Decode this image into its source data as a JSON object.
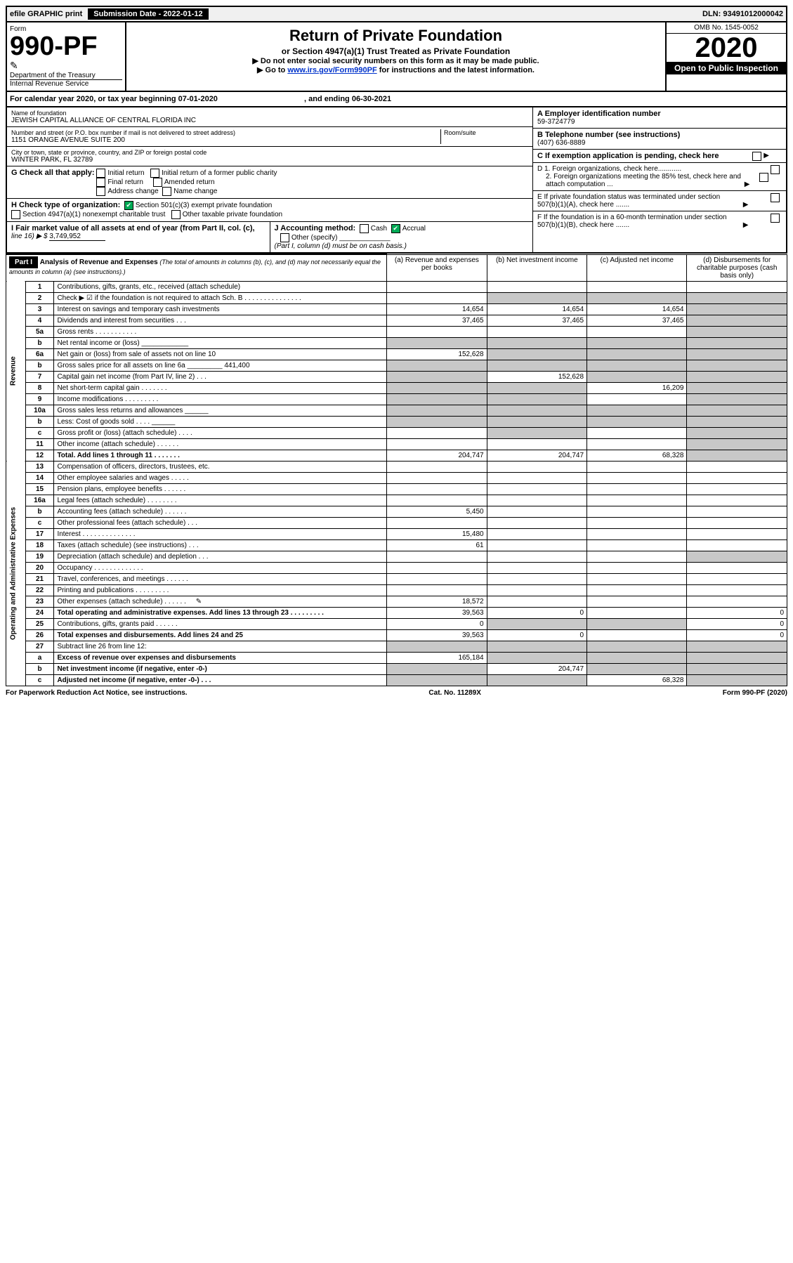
{
  "topbar": {
    "efile": "efile GRAPHIC print",
    "sub_label": "Submission Date - 2022-01-12",
    "dln": "DLN: 93491012000042"
  },
  "header": {
    "form_word": "Form",
    "form_no": "990-PF",
    "dept": "Department of the Treasury",
    "irs": "Internal Revenue Service",
    "title": "Return of Private Foundation",
    "subtitle": "or Section 4947(a)(1) Trust Treated as Private Foundation",
    "instr1": "▶ Do not enter social security numbers on this form as it may be made public.",
    "instr2_pre": "▶ Go to ",
    "instr2_link": "www.irs.gov/Form990PF",
    "instr2_post": " for instructions and the latest information.",
    "omb": "OMB No. 1545-0052",
    "year": "2020",
    "open": "Open to Public Inspection"
  },
  "calyear": {
    "text_pre": "For calendar year 2020, or tax year beginning ",
    "begin": "07-01-2020",
    "mid": " , and ending ",
    "end": "06-30-2021"
  },
  "org": {
    "name_lbl": "Name of foundation",
    "name": "JEWISH CAPITAL ALLIANCE OF CENTRAL FLORIDA INC",
    "addr_lbl": "Number and street (or P.O. box number if mail is not delivered to street address)",
    "addr": "1151 ORANGE AVENUE SUITE 200",
    "room_lbl": "Room/suite",
    "city_lbl": "City or town, state or province, country, and ZIP or foreign postal code",
    "city": "WINTER PARK, FL  32789"
  },
  "right": {
    "A_lbl": "A Employer identification number",
    "A_val": "59-3724779",
    "B_lbl": "B Telephone number (see instructions)",
    "B_val": "(407) 636-8889",
    "C_lbl": "C If exemption application is pending, check here",
    "D1": "D 1. Foreign organizations, check here............",
    "D2": "2. Foreign organizations meeting the 85% test, check here and attach computation ...",
    "E": "E  If private foundation status was terminated under section 507(b)(1)(A), check here .......",
    "F": "F  If the foundation is in a 60-month termination under section 507(b)(1)(B), check here .......",
    "arrow": "▶"
  },
  "G": {
    "lbl": "G Check all that apply:",
    "opts": [
      "Initial return",
      "Final return",
      "Address change",
      "Initial return of a former public charity",
      "Amended return",
      "Name change"
    ]
  },
  "H": {
    "lbl": "H Check type of organization:",
    "o1": "Section 501(c)(3) exempt private foundation",
    "o2": "Section 4947(a)(1) nonexempt charitable trust",
    "o3": "Other taxable private foundation"
  },
  "I": {
    "lbl": "I Fair market value of all assets at end of year (from Part II, col. (c),",
    "line": "line 16) ▶ $",
    "val": "3,749,952"
  },
  "J": {
    "lbl": "J Accounting method:",
    "cash": "Cash",
    "accrual": "Accrual",
    "other": "Other (specify)",
    "note": "(Part I, column (d) must be on cash basis.)"
  },
  "part1": {
    "label": "Part I",
    "title": "Analysis of Revenue and Expenses",
    "note": "(The total of amounts in columns (b), (c), and (d) may not necessarily equal the amounts in column (a) (see instructions).)",
    "col_a": "(a) Revenue and expenses per books",
    "col_b": "(b) Net investment income",
    "col_c": "(c) Adjusted net income",
    "col_d": "(d) Disbursements for charitable purposes (cash basis only)"
  },
  "vert": {
    "revenue": "Revenue",
    "expenses": "Operating and Administrative Expenses"
  },
  "rows": [
    {
      "ln": "1",
      "desc": "Contributions, gifts, grants, etc., received (attach schedule)",
      "a": "",
      "b": "",
      "c": "",
      "d": "",
      "grey_d": false
    },
    {
      "ln": "2",
      "desc": "Check ▶ ☑ if the foundation is not required to attach Sch. B      .   .   .   .   .   .   .   .   .   .   .   .   .   .   .",
      "a": "",
      "b": "",
      "c": "",
      "d": "",
      "grey_b": true,
      "grey_c": true,
      "grey_d": true
    },
    {
      "ln": "3",
      "desc": "Interest on savings and temporary cash investments",
      "a": "14,654",
      "b": "14,654",
      "c": "14,654",
      "d": "",
      "grey_d": true
    },
    {
      "ln": "4",
      "desc": "Dividends and interest from securities     .   .   .",
      "a": "37,465",
      "b": "37,465",
      "c": "37,465",
      "d": "",
      "grey_d": true
    },
    {
      "ln": "5a",
      "desc": "Gross rents        .   .   .   .   .   .   .   .   .   .   .",
      "a": "",
      "b": "",
      "c": "",
      "d": "",
      "grey_d": true
    },
    {
      "ln": "b",
      "desc": "Net rental income or (loss) ____________",
      "a": "",
      "b": "",
      "c": "",
      "d": "",
      "grey_a": true,
      "grey_b": true,
      "grey_c": true,
      "grey_d": true
    },
    {
      "ln": "6a",
      "desc": "Net gain or (loss) from sale of assets not on line 10",
      "a": "152,628",
      "b": "",
      "c": "",
      "d": "",
      "grey_b": true,
      "grey_c": true,
      "grey_d": true
    },
    {
      "ln": "b",
      "desc": "Gross sales price for all assets on line 6a _________ 441,400",
      "a": "",
      "b": "",
      "c": "",
      "d": "",
      "grey_a": true,
      "grey_b": true,
      "grey_c": true,
      "grey_d": true
    },
    {
      "ln": "7",
      "desc": "Capital gain net income (from Part IV, line 2)    .   .   .",
      "a": "",
      "b": "152,628",
      "c": "",
      "d": "",
      "grey_a": true,
      "grey_c": true,
      "grey_d": true
    },
    {
      "ln": "8",
      "desc": "Net short-term capital gain    .   .   .   .   .   .   .",
      "a": "",
      "b": "",
      "c": "16,209",
      "d": "",
      "grey_a": true,
      "grey_b": true,
      "grey_d": true
    },
    {
      "ln": "9",
      "desc": "Income modifications  .   .   .   .   .   .   .   .   .",
      "a": "",
      "b": "",
      "c": "",
      "d": "",
      "grey_a": true,
      "grey_b": true,
      "grey_d": true
    },
    {
      "ln": "10a",
      "desc": "Gross sales less returns and allowances  ______",
      "a": "",
      "b": "",
      "c": "",
      "d": "",
      "grey_a": true,
      "grey_b": true,
      "grey_c": true,
      "grey_d": true
    },
    {
      "ln": "b",
      "desc": "Less: Cost of goods sold     .   .   .   .   ______",
      "a": "",
      "b": "",
      "c": "",
      "d": "",
      "grey_a": true,
      "grey_b": true,
      "grey_c": true,
      "grey_d": true
    },
    {
      "ln": "c",
      "desc": "Gross profit or (loss) (attach schedule)     .   .   .   .",
      "a": "",
      "b": "",
      "c": "",
      "d": "",
      "grey_b": true,
      "grey_d": true
    },
    {
      "ln": "11",
      "desc": "Other income (attach schedule)    .   .   .   .   .   .",
      "a": "",
      "b": "",
      "c": "",
      "d": "",
      "grey_d": true
    },
    {
      "ln": "12",
      "desc": "Total. Add lines 1 through 11    .   .   .   .   .   .   .",
      "a": "204,747",
      "b": "204,747",
      "c": "68,328",
      "d": "",
      "bold": true,
      "grey_d": true
    }
  ],
  "exp_rows": [
    {
      "ln": "13",
      "desc": "Compensation of officers, directors, trustees, etc.",
      "a": "",
      "b": "",
      "c": "",
      "d": ""
    },
    {
      "ln": "14",
      "desc": "Other employee salaries and wages    .   .   .   .   .",
      "a": "",
      "b": "",
      "c": "",
      "d": ""
    },
    {
      "ln": "15",
      "desc": "Pension plans, employee benefits   .   .   .   .   .   .",
      "a": "",
      "b": "",
      "c": "",
      "d": ""
    },
    {
      "ln": "16a",
      "desc": "Legal fees (attach schedule)  .   .   .   .   .   .   .   .",
      "a": "",
      "b": "",
      "c": "",
      "d": ""
    },
    {
      "ln": "b",
      "desc": "Accounting fees (attach schedule)  .   .   .   .   .   .",
      "a": "5,450",
      "b": "",
      "c": "",
      "d": ""
    },
    {
      "ln": "c",
      "desc": "Other professional fees (attach schedule)     .   .   .",
      "a": "",
      "b": "",
      "c": "",
      "d": ""
    },
    {
      "ln": "17",
      "desc": "Interest  .   .   .   .   .   .   .   .   .   .   .   .   .   .",
      "a": "15,480",
      "b": "",
      "c": "",
      "d": ""
    },
    {
      "ln": "18",
      "desc": "Taxes (attach schedule) (see instructions)      .   .   .",
      "a": "61",
      "b": "",
      "c": "",
      "d": ""
    },
    {
      "ln": "19",
      "desc": "Depreciation (attach schedule) and depletion    .   .   .",
      "a": "",
      "b": "",
      "c": "",
      "d": "",
      "grey_d": true
    },
    {
      "ln": "20",
      "desc": "Occupancy  .   .   .   .   .   .   .   .   .   .   .   .   .",
      "a": "",
      "b": "",
      "c": "",
      "d": ""
    },
    {
      "ln": "21",
      "desc": "Travel, conferences, and meetings  .   .   .   .   .   .",
      "a": "",
      "b": "",
      "c": "",
      "d": ""
    },
    {
      "ln": "22",
      "desc": "Printing and publications  .   .   .   .   .   .   .   .   .",
      "a": "",
      "b": "",
      "c": "",
      "d": ""
    },
    {
      "ln": "23",
      "desc": "Other expenses (attach schedule)  .   .   .   .   .   .",
      "a": "18,572",
      "b": "",
      "c": "",
      "d": "",
      "icon": true
    },
    {
      "ln": "24",
      "desc": "Total operating and administrative expenses. Add lines 13 through 23   .   .   .   .   .   .   .   .   .",
      "a": "39,563",
      "b": "0",
      "c": "",
      "d": "0",
      "bold": true
    },
    {
      "ln": "25",
      "desc": "Contributions, gifts, grants paid      .   .   .   .   .   .",
      "a": "0",
      "b": "",
      "c": "",
      "d": "0",
      "grey_b": true,
      "grey_c": true
    },
    {
      "ln": "26",
      "desc": "Total expenses and disbursements. Add lines 24 and 25",
      "a": "39,563",
      "b": "0",
      "c": "",
      "d": "0",
      "bold": true
    },
    {
      "ln": "27",
      "desc": "Subtract line 26 from line 12:",
      "a": "",
      "b": "",
      "c": "",
      "d": "",
      "grey_a": true,
      "grey_b": true,
      "grey_c": true,
      "grey_d": true
    },
    {
      "ln": "a",
      "desc": "Excess of revenue over expenses and disbursements",
      "a": "165,184",
      "b": "",
      "c": "",
      "d": "",
      "bold": true,
      "grey_b": true,
      "grey_c": true,
      "grey_d": true
    },
    {
      "ln": "b",
      "desc": "Net investment income (if negative, enter -0-)",
      "a": "",
      "b": "204,747",
      "c": "",
      "d": "",
      "bold": true,
      "grey_a": true,
      "grey_c": true,
      "grey_d": true
    },
    {
      "ln": "c",
      "desc": "Adjusted net income (if negative, enter -0-)    .   .   .",
      "a": "",
      "b": "",
      "c": "68,328",
      "d": "",
      "bold": true,
      "grey_a": true,
      "grey_b": true,
      "grey_d": true
    }
  ],
  "footer": {
    "left": "For Paperwork Reduction Act Notice, see instructions.",
    "mid": "Cat. No. 11289X",
    "right": "Form 990-PF (2020)"
  },
  "colors": {
    "grey": "#c8c8c8",
    "link": "#0033cc"
  }
}
